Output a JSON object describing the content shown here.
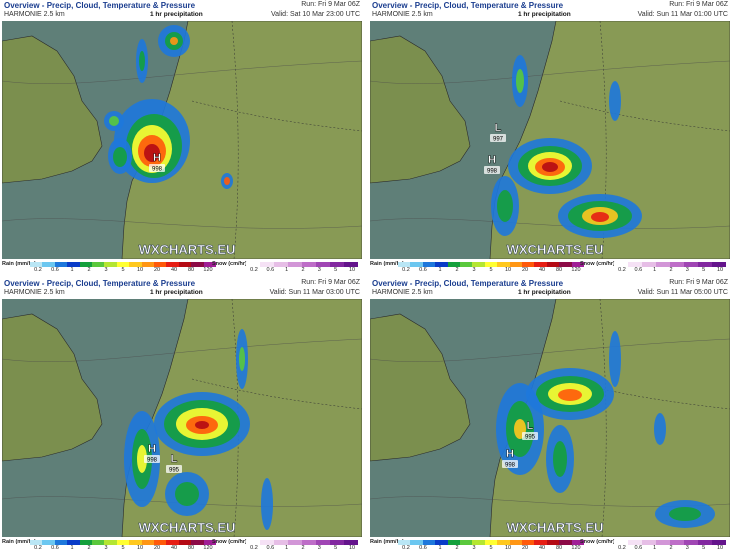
{
  "panels": [
    {
      "title": "Overview - Precip, Cloud, Temperature & Pressure",
      "model": "HARMONIE 2.5 km",
      "field": "1 hr precipitation",
      "run": "Run: Fri 9 Mar 06Z",
      "valid": "Valid: Sat 10 Mar 23:00 UTC",
      "watermark": "WXCHARTS.EU",
      "pressure_centers": [
        {
          "symbol": "H",
          "value": "998"
        }
      ]
    },
    {
      "title": "Overview - Precip, Cloud, Temperature & Pressure",
      "model": "HARMONIE 2.5 km",
      "field": "1 hr precipitation",
      "run": "Run: Fri 9 Mar 06Z",
      "valid": "Valid: Sun 11 Mar 01:00 UTC",
      "watermark": "WXCHARTS.EU",
      "pressure_centers": [
        {
          "symbol": "L",
          "value": "997"
        },
        {
          "symbol": "H",
          "value": "998"
        }
      ]
    },
    {
      "title": "Overview - Precip, Cloud, Temperature & Pressure",
      "model": "HARMONIE 2.5 km",
      "field": "1 hr precipitation",
      "run": "Run: Fri 9 Mar 06Z",
      "valid": "Valid: Sun 11 Mar 03:00 UTC",
      "watermark": "WXCHARTS.EU",
      "pressure_centers": [
        {
          "symbol": "H",
          "value": "998"
        },
        {
          "symbol": "L",
          "value": "995"
        }
      ]
    },
    {
      "title": "Overview - Precip, Cloud, Temperature & Pressure",
      "model": "HARMONIE 2.5 km",
      "field": "1 hr precipitation",
      "run": "Run: Fri 9 Mar 06Z",
      "valid": "Valid: Sun 11 Mar 05:00 UTC",
      "watermark": "WXCHARTS.EU",
      "pressure_centers": [
        {
          "symbol": "L",
          "value": "995"
        },
        {
          "symbol": "H",
          "value": "998"
        }
      ]
    }
  ],
  "legend": {
    "rain_label": "Rain (mm/hr)",
    "rain_ticks": [
      "0.2",
      "0.6",
      "1",
      "2",
      "3",
      "5",
      "10",
      "20",
      "40",
      "80",
      "120"
    ],
    "rain_colors": [
      "#b9e6f5",
      "#6cc7f0",
      "#1e78dc",
      "#0a3cc8",
      "#14a03c",
      "#5ac83c",
      "#b4e632",
      "#ffff32",
      "#ffc81e",
      "#ff9614",
      "#ff5a0a",
      "#e61e14",
      "#b40a14",
      "#8c0a46",
      "#a01e96"
    ],
    "snow_label": "Snow (cm/hr)",
    "snow_ticks": [
      "0.2",
      "0.6",
      "1",
      "2",
      "3",
      "5",
      "10"
    ],
    "snow_colors": [
      "#ffffff",
      "#f5e1f5",
      "#e6bee6",
      "#d296d7",
      "#be6ec8",
      "#a046b4",
      "#8228a0",
      "#64148c"
    ]
  }
}
